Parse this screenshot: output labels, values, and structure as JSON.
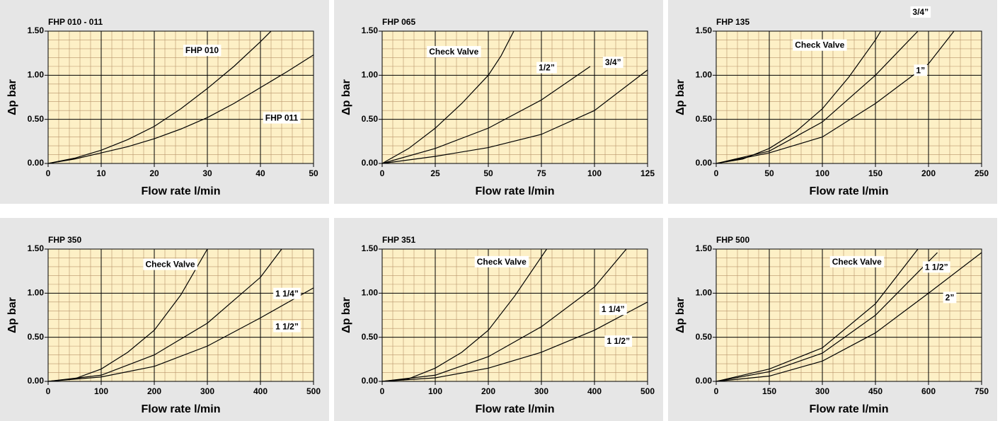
{
  "chart_data": [
    {
      "type": "line",
      "title": "FHP 010 - 011",
      "xlabel": "Flow rate l/min",
      "ylabel": "Δp bar",
      "xlim": [
        0,
        50
      ],
      "ylim": [
        0,
        1.5
      ],
      "xticks": [
        0,
        10,
        20,
        30,
        40,
        50
      ],
      "yticks": [
        {
          "value": 0,
          "label": "0.00"
        },
        {
          "value": 0.5,
          "label": "0.50"
        },
        {
          "value": 1,
          "label": "1.00"
        },
        {
          "value": 1.5,
          "label": "1.50"
        }
      ],
      "grid": true,
      "minor_grid": 5,
      "color": "#000000",
      "series": [
        {
          "name": "FHP 010",
          "x": [
            0,
            5,
            10,
            15,
            20,
            25,
            30,
            35,
            40,
            42
          ],
          "values": [
            0,
            0.06,
            0.15,
            0.27,
            0.42,
            0.62,
            0.85,
            1.1,
            1.38,
            1.5
          ]
        },
        {
          "name": "FHP 011",
          "x": [
            0,
            5,
            10,
            15,
            20,
            25,
            30,
            35,
            40,
            45,
            50
          ],
          "values": [
            0,
            0.05,
            0.12,
            0.19,
            0.28,
            0.39,
            0.52,
            0.68,
            0.86,
            1.04,
            1.23
          ]
        }
      ]
    },
    {
      "type": "line",
      "title": "FHP 065",
      "xlabel": "Flow rate l/min",
      "ylabel": "Δp bar",
      "xlim": [
        0,
        125
      ],
      "ylim": [
        0,
        1.5
      ],
      "xticks": [
        0,
        25,
        50,
        75,
        100,
        125
      ],
      "yticks": [
        {
          "value": 0,
          "label": "0.00"
        },
        {
          "value": 0.5,
          "label": "0.50"
        },
        {
          "value": 1,
          "label": "1.00"
        },
        {
          "value": 1.5,
          "label": "1.50"
        }
      ],
      "grid": true,
      "minor_grid": 5,
      "color": "#000000",
      "series": [
        {
          "name": "Check Valve",
          "x": [
            0,
            12.5,
            25,
            37.5,
            50,
            56,
            62
          ],
          "values": [
            0,
            0.17,
            0.4,
            0.68,
            1.0,
            1.22,
            1.5
          ]
        },
        {
          "name": "1/2”",
          "x": [
            0,
            25,
            50,
            75,
            98
          ],
          "values": [
            0,
            0.17,
            0.4,
            0.72,
            1.1
          ]
        },
        {
          "name": "3/4”",
          "x": [
            0,
            25,
            50,
            75,
            100,
            125
          ],
          "values": [
            0,
            0.08,
            0.18,
            0.33,
            0.6,
            1.06
          ]
        }
      ]
    },
    {
      "type": "line",
      "title": "FHP 135",
      "xlabel": "Flow rate l/min",
      "ylabel": "Δp bar",
      "xlim": [
        0,
        250
      ],
      "ylim": [
        0,
        1.5
      ],
      "xticks": [
        0,
        50,
        100,
        150,
        200,
        250
      ],
      "yticks": [
        {
          "value": 0,
          "label": "0.00"
        },
        {
          "value": 0.5,
          "label": "0.50"
        },
        {
          "value": 1,
          "label": "1.00"
        },
        {
          "value": 1.5,
          "label": "1.50"
        }
      ],
      "grid": true,
      "minor_grid": 5,
      "color": "#000000",
      "series": [
        {
          "name": "Check Valve",
          "x": [
            0,
            25,
            50,
            75,
            100,
            125,
            150,
            155
          ],
          "values": [
            0,
            0.05,
            0.17,
            0.36,
            0.62,
            0.98,
            1.4,
            1.5
          ]
        },
        {
          "name": "3/4”",
          "x": [
            0,
            50,
            100,
            150,
            190
          ],
          "values": [
            0,
            0.14,
            0.47,
            1.0,
            1.5
          ]
        },
        {
          "name": "1”",
          "x": [
            0,
            50,
            100,
            150,
            200,
            224
          ],
          "values": [
            0,
            0.12,
            0.3,
            0.68,
            1.13,
            1.5
          ]
        }
      ]
    },
    {
      "type": "line",
      "title": "FHP 350",
      "xlabel": "Flow rate l/min",
      "ylabel": "Δp bar",
      "xlim": [
        0,
        500
      ],
      "ylim": [
        0,
        1.5
      ],
      "xticks": [
        0,
        100,
        200,
        300,
        400,
        500
      ],
      "yticks": [
        {
          "value": 0,
          "label": "0.00"
        },
        {
          "value": 0.5,
          "label": "0.50"
        },
        {
          "value": 1,
          "label": "1.00"
        },
        {
          "value": 1.5,
          "label": "1.50"
        }
      ],
      "grid": true,
      "minor_grid": 5,
      "color": "#000000",
      "series": [
        {
          "name": "Check Valve",
          "x": [
            0,
            50,
            100,
            150,
            200,
            250,
            300
          ],
          "values": [
            0,
            0.03,
            0.14,
            0.33,
            0.58,
            0.98,
            1.5
          ]
        },
        {
          "name": "1 1/4”",
          "x": [
            0,
            100,
            200,
            300,
            400,
            440
          ],
          "values": [
            0,
            0.07,
            0.3,
            0.66,
            1.18,
            1.5
          ]
        },
        {
          "name": "1 1/2”",
          "x": [
            0,
            100,
            200,
            300,
            400,
            500
          ],
          "values": [
            0,
            0.05,
            0.17,
            0.4,
            0.72,
            1.06
          ]
        }
      ]
    },
    {
      "type": "line",
      "title": "FHP 351",
      "xlabel": "Flow rate l/min",
      "ylabel": "Δp bar",
      "xlim": [
        0,
        500
      ],
      "ylim": [
        0,
        1.5
      ],
      "xticks": [
        0,
        100,
        200,
        300,
        400,
        500
      ],
      "yticks": [
        {
          "value": 0,
          "label": "0.00"
        },
        {
          "value": 0.5,
          "label": "0.50"
        },
        {
          "value": 1,
          "label": "1.00"
        },
        {
          "value": 1.5,
          "label": "1.50"
        }
      ],
      "grid": true,
      "minor_grid": 5,
      "color": "#000000",
      "series": [
        {
          "name": "Check Valve",
          "x": [
            0,
            50,
            100,
            150,
            200,
            250,
            310
          ],
          "values": [
            0,
            0.03,
            0.15,
            0.33,
            0.58,
            0.97,
            1.5
          ]
        },
        {
          "name": "1 1/4”",
          "x": [
            0,
            100,
            200,
            300,
            400,
            460
          ],
          "values": [
            0,
            0.07,
            0.28,
            0.62,
            1.07,
            1.5
          ]
        },
        {
          "name": "1 1/2”",
          "x": [
            0,
            100,
            200,
            300,
            400,
            500
          ],
          "values": [
            0,
            0.04,
            0.15,
            0.33,
            0.58,
            0.9
          ]
        }
      ]
    },
    {
      "type": "line",
      "title": "FHP 500",
      "xlabel": "Flow rate l/min",
      "ylabel": "Δp bar",
      "xlim": [
        0,
        750
      ],
      "ylim": [
        0,
        1.5
      ],
      "xticks": [
        0,
        150,
        300,
        450,
        600,
        750
      ],
      "yticks": [
        {
          "value": 0,
          "label": "0.00"
        },
        {
          "value": 0.5,
          "label": "0.50"
        },
        {
          "value": 1,
          "label": "1.00"
        },
        {
          "value": 1.5,
          "label": "1.50"
        }
      ],
      "grid": true,
      "minor_grid": 5,
      "color": "#000000",
      "series": [
        {
          "name": "Check Valve",
          "x": [
            0,
            150,
            300,
            450,
            570
          ],
          "values": [
            0,
            0.14,
            0.38,
            0.88,
            1.5
          ]
        },
        {
          "name": "1 1/2”",
          "x": [
            0,
            150,
            300,
            450,
            625
          ],
          "values": [
            0,
            0.11,
            0.32,
            0.75,
            1.46
          ]
        },
        {
          "name": "2”",
          "x": [
            0,
            150,
            300,
            450,
            600,
            750
          ],
          "values": [
            0,
            0.06,
            0.23,
            0.55,
            1.0,
            1.46
          ]
        }
      ]
    }
  ]
}
